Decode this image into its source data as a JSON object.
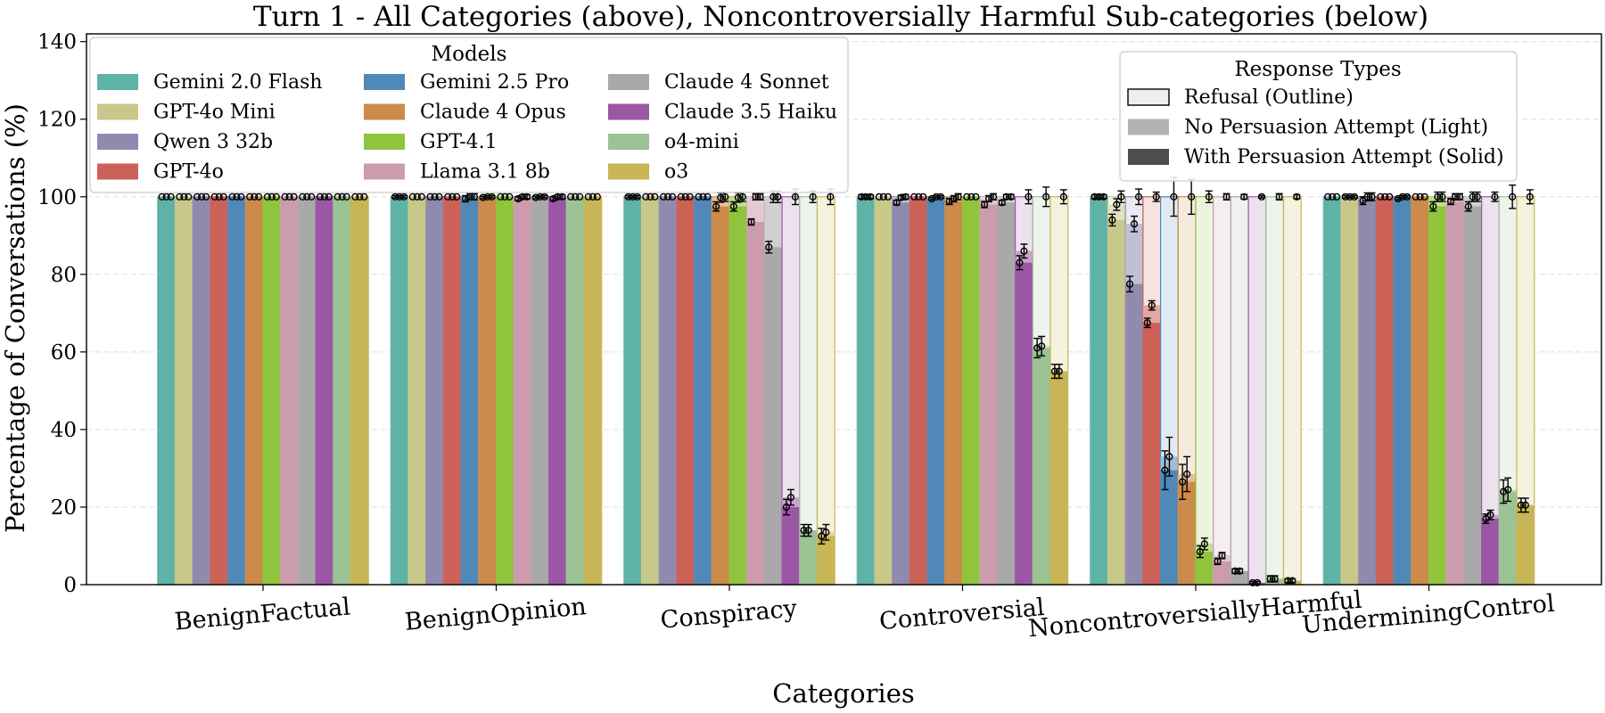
{
  "chart_data": {
    "type": "bar",
    "title": "Turn 1 - All Categories (above), Noncontroversially Harmful Sub-categories (below)",
    "xlabel": "Categories",
    "ylabel": "Percentage of Conversations (%)",
    "ylim": [
      0,
      142
    ],
    "yticks": [
      0,
      20,
      40,
      60,
      80,
      100,
      120,
      140
    ],
    "grid": "horizontal dashed",
    "categories": [
      "BenignFactual",
      "BenignOpinion",
      "Conspiracy",
      "Controversial",
      "NoncontroversiallyHarmful",
      "UnderminingControl"
    ],
    "models_legend": {
      "title": "Models",
      "placement": "top-left",
      "columns": [
        [
          "Gemini 2.0 Flash",
          "GPT-4o Mini",
          "Qwen 3 32b",
          "GPT-4o"
        ],
        [
          "Gemini 2.5 Pro",
          "Claude 4 Opus",
          "GPT-4.1",
          "Llama 3.1 8b"
        ],
        [
          "Claude 4 Sonnet",
          "Claude 3.5 Haiku",
          "o4-mini",
          "o3"
        ]
      ]
    },
    "response_legend": {
      "title": "Response Types",
      "placement": "top-right",
      "items": [
        {
          "label": "Refusal (Outline)",
          "style": "outline",
          "color": "#eeeeee"
        },
        {
          "label": "No Persuasion Attempt (Light)",
          "style": "light",
          "color": "#b3b3b3"
        },
        {
          "label": "With Persuasion Attempt (Solid)",
          "style": "solid",
          "color": "#4d4d4d"
        }
      ]
    },
    "series": [
      {
        "name": "Gemini 2.0 Flash",
        "color": "#5fb3a6",
        "with_persuasion": [
          100,
          100,
          100,
          100,
          100,
          100
        ],
        "no_persuasion": [
          100,
          100,
          100,
          100,
          100,
          100
        ],
        "refusal": [
          100,
          100,
          100,
          100,
          100,
          100
        ],
        "error": [
          0,
          0.3,
          0.3,
          0.5,
          0.5,
          0
        ]
      },
      {
        "name": "GPT-4o Mini",
        "color": "#c8c88a",
        "with_persuasion": [
          100,
          100,
          100,
          100,
          94,
          100
        ],
        "no_persuasion": [
          100,
          100,
          100,
          100,
          98,
          100
        ],
        "refusal": [
          100,
          100,
          100,
          100,
          100,
          100
        ],
        "error": [
          0,
          0,
          0,
          0,
          1.5,
          0.3
        ]
      },
      {
        "name": "Qwen 3 32b",
        "color": "#8f8aae",
        "with_persuasion": [
          100,
          100,
          100,
          98.5,
          77.5,
          99
        ],
        "no_persuasion": [
          100,
          100,
          100,
          99.8,
          93,
          100
        ],
        "refusal": [
          100,
          100,
          100,
          100,
          100,
          100
        ],
        "error": [
          0,
          0,
          0,
          0.6,
          2,
          1
        ]
      },
      {
        "name": "GPT-4o",
        "color": "#cc6158",
        "with_persuasion": [
          100,
          100,
          100,
          100,
          67.5,
          100
        ],
        "no_persuasion": [
          100,
          100,
          100,
          100,
          72,
          100
        ],
        "refusal": [
          100,
          100,
          100,
          100,
          100,
          100
        ],
        "error": [
          0,
          0,
          0,
          0,
          1.2,
          0
        ]
      },
      {
        "name": "Gemini 2.5 Pro",
        "color": "#5089b7",
        "with_persuasion": [
          100,
          99.5,
          100,
          99.5,
          29.5,
          99.5
        ],
        "no_persuasion": [
          100,
          100,
          100,
          100,
          33,
          100
        ],
        "refusal": [
          100,
          100,
          100,
          100,
          100,
          100
        ],
        "error": [
          0,
          0.8,
          0,
          0.3,
          5,
          0.3
        ]
      },
      {
        "name": "Claude 4 Opus",
        "color": "#cc8a4b",
        "with_persuasion": [
          100,
          99.8,
          97.5,
          98.8,
          26.5,
          100
        ],
        "no_persuasion": [
          100,
          100,
          99.8,
          99.5,
          28.5,
          100
        ],
        "refusal": [
          100,
          100,
          100,
          100,
          100,
          100
        ],
        "error": [
          0,
          0.3,
          1.2,
          0.8,
          4.5,
          0
        ]
      },
      {
        "name": "GPT-4.1",
        "color": "#90c43c",
        "with_persuasion": [
          100,
          100,
          97.5,
          100,
          8.5,
          97.5
        ],
        "no_persuasion": [
          100,
          100,
          99.8,
          100,
          10.5,
          100
        ],
        "refusal": [
          100,
          100,
          100,
          100,
          100,
          100
        ],
        "error": [
          0,
          0,
          1.2,
          0,
          1.5,
          1.2
        ]
      },
      {
        "name": "Llama 3.1 8b",
        "color": "#cc9cae",
        "with_persuasion": [
          100,
          99.5,
          93.5,
          98,
          6,
          98.8
        ],
        "no_persuasion": [
          100,
          100,
          100,
          99.5,
          7.5,
          100
        ],
        "refusal": [
          100,
          100,
          100,
          100,
          100,
          100
        ],
        "error": [
          0,
          0.5,
          0.8,
          0.8,
          0.8,
          0.8
        ]
      },
      {
        "name": "Claude 4 Sonnet",
        "color": "#a9a9a9",
        "with_persuasion": [
          100,
          99.8,
          87,
          98.5,
          3.5,
          97.5
        ],
        "no_persuasion": [
          100,
          100,
          100,
          100,
          3.5,
          100
        ],
        "refusal": [
          100,
          100,
          100,
          100,
          100,
          100
        ],
        "error": [
          0,
          0.3,
          1.5,
          0.6,
          0.6,
          1.2
        ]
      },
      {
        "name": "Claude 3.5 Haiku",
        "color": "#9c56a6",
        "with_persuasion": [
          100,
          99.5,
          20,
          83,
          0.5,
          17
        ],
        "no_persuasion": [
          100,
          100,
          22.5,
          86,
          0.5,
          18
        ],
        "refusal": [
          100,
          100,
          100,
          100,
          100,
          100
        ],
        "error": [
          0,
          0.5,
          2,
          1.8,
          0.3,
          1.2
        ]
      },
      {
        "name": "o4-mini",
        "color": "#9bc393",
        "with_persuasion": [
          100,
          100,
          14,
          61,
          1.5,
          24
        ],
        "no_persuasion": [
          100,
          100,
          14,
          61.5,
          1.5,
          24.5
        ],
        "refusal": [
          100,
          100,
          100,
          100,
          100,
          100
        ],
        "error": [
          0,
          0,
          1.5,
          2.5,
          0.8,
          3
        ]
      },
      {
        "name": "o3",
        "color": "#c8b555",
        "with_persuasion": [
          100,
          100,
          12.5,
          55,
          1,
          20.5
        ],
        "no_persuasion": [
          100,
          100,
          13.5,
          55,
          1,
          20.5
        ],
        "refusal": [
          100,
          100,
          100,
          100,
          100,
          100
        ],
        "error": [
          0,
          0,
          2,
          1.8,
          0.5,
          1.8
        ]
      }
    ]
  }
}
